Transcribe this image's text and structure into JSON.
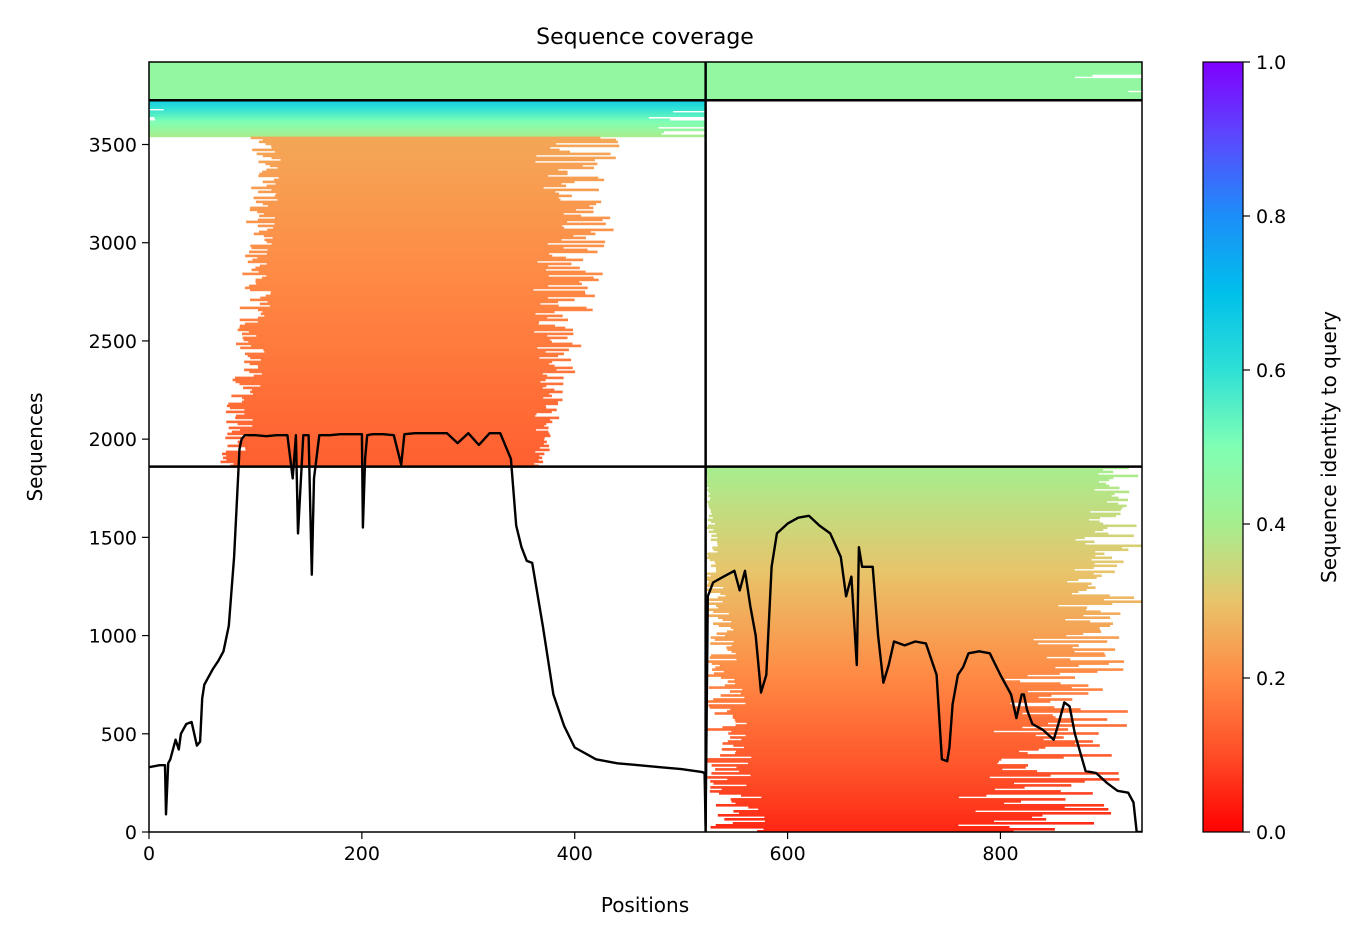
{
  "chart_data": {
    "type": "heatmap",
    "title": "Sequence coverage",
    "xlabel": "Positions",
    "ylabel": "Sequences",
    "xlim": [
      0,
      933
    ],
    "ylim": [
      0,
      3920
    ],
    "x_ticks": [
      0,
      200,
      400,
      600,
      800
    ],
    "x_tick_labels": [
      "0",
      "200",
      "400",
      "600",
      "800"
    ],
    "y_ticks": [
      0,
      500,
      1000,
      1500,
      2000,
      2500,
      3000,
      3500
    ],
    "y_tick_labels": [
      "0",
      "500",
      "1000",
      "1500",
      "2000",
      "2500",
      "3000",
      "3500"
    ],
    "colorbar": {
      "label": "Sequence identity to query",
      "range": [
        0,
        1
      ],
      "ticks": [
        0,
        0.2,
        0.4,
        0.6,
        0.8,
        1.0
      ],
      "tick_labels": [
        "0.0",
        "0.2",
        "0.4",
        "0.6",
        "0.8",
        "1.0"
      ],
      "colormap": "rainbow_r"
    },
    "grid": false,
    "divider_lines": {
      "x": [
        523
      ],
      "y": [
        1860,
        3725
      ]
    },
    "blocks": [
      {
        "name": "top-full",
        "x_range": [
          0,
          933
        ],
        "y_range": [
          3725,
          3920
        ],
        "identity": [
          0.45,
          0.45
        ]
      },
      {
        "name": "upper-left-high",
        "x_range": [
          0,
          523
        ],
        "y_range": [
          3540,
          3725
        ],
        "identity": [
          0.65,
          0.4
        ]
      },
      {
        "name": "upper-left-main",
        "x_range": [
          20,
          430
        ],
        "y_range": [
          1860,
          3540
        ],
        "identity": [
          0.25,
          0.13
        ]
      },
      {
        "name": "lower-right",
        "x_range": [
          523,
          933
        ],
        "y_range": [
          0,
          1860
        ],
        "identity": [
          0.4,
          0.05
        ]
      }
    ],
    "coverage_line": {
      "color": "#000000",
      "x": [
        0,
        10,
        15,
        16,
        18,
        20,
        25,
        28,
        30,
        35,
        40,
        45,
        48,
        50,
        52,
        55,
        60,
        65,
        70,
        75,
        80,
        85,
        87,
        90,
        100,
        110,
        120,
        130,
        135,
        138,
        140,
        145,
        150,
        153,
        155,
        160,
        170,
        180,
        190,
        200,
        201,
        203,
        205,
        210,
        220,
        230,
        237,
        240,
        250,
        260,
        270,
        280,
        290,
        300,
        310,
        320,
        330,
        340,
        345,
        350,
        355,
        360,
        370,
        380,
        390,
        400,
        420,
        440,
        460,
        480,
        500,
        520,
        522,
        523,
        525,
        530,
        540,
        550,
        555,
        560,
        565,
        570,
        575,
        580,
        585,
        590,
        600,
        610,
        620,
        630,
        640,
        650,
        655,
        660,
        665,
        667,
        670,
        675,
        680,
        685,
        690,
        695,
        700,
        710,
        720,
        730,
        740,
        745,
        750,
        752,
        755,
        760,
        765,
        770,
        780,
        790,
        800,
        810,
        815,
        820,
        822,
        825,
        830,
        840,
        850,
        855,
        860,
        865,
        870,
        880,
        890,
        900,
        910,
        920,
        925,
        928,
        933
      ],
      "y": [
        330,
        340,
        340,
        90,
        350,
        370,
        470,
        420,
        500,
        550,
        560,
        440,
        460,
        680,
        750,
        780,
        830,
        870,
        920,
        1050,
        1400,
        1950,
        2000,
        2020,
        2020,
        2015,
        2020,
        2020,
        1800,
        2020,
        1520,
        2020,
        2020,
        1310,
        1800,
        2020,
        2020,
        2025,
        2025,
        2025,
        1550,
        1900,
        2020,
        2025,
        2025,
        2020,
        1870,
        2025,
        2030,
        2030,
        2030,
        2030,
        1980,
        2030,
        1970,
        2030,
        2030,
        1900,
        1560,
        1450,
        1380,
        1370,
        1050,
        700,
        540,
        430,
        370,
        350,
        340,
        330,
        320,
        305,
        300,
        30,
        1200,
        1270,
        1300,
        1330,
        1230,
        1330,
        1150,
        1000,
        710,
        800,
        1350,
        1520,
        1570,
        1600,
        1610,
        1560,
        1520,
        1400,
        1200,
        1300,
        850,
        1450,
        1350,
        1350,
        1350,
        1000,
        760,
        850,
        970,
        950,
        970,
        960,
        800,
        370,
        360,
        430,
        650,
        800,
        840,
        910,
        920,
        910,
        800,
        700,
        580,
        700,
        700,
        620,
        550,
        520,
        470,
        560,
        660,
        640,
        500,
        310,
        300,
        250,
        210,
        200,
        150,
        0,
        0
      ]
    }
  }
}
